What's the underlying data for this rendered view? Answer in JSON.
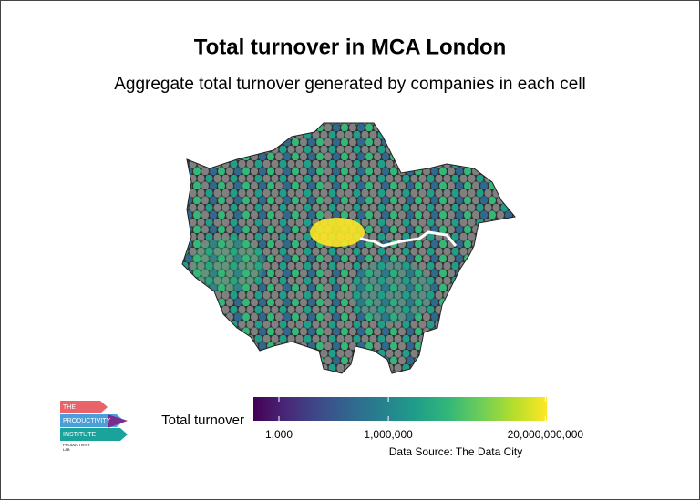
{
  "chart_data": {
    "type": "map",
    "title": "Total turnover in MCA London",
    "subtitle": "Aggregate total turnover generated by companies in each cell",
    "colorbar": {
      "title": "Total turnover",
      "log": true,
      "lim": [
        200,
        22000000000
      ],
      "ticks": [
        {
          "value": 1000,
          "label": "1,000"
        },
        {
          "value": 1000000,
          "label": "1,000,000"
        },
        {
          "value": 20000000000,
          "label": "20,000,000,000"
        }
      ],
      "colors": [
        "#440154",
        "#482878",
        "#3e4a89",
        "#31688e",
        "#26828e",
        "#1f9e89",
        "#35b779",
        "#6ece58",
        "#b5de2b",
        "#fde725"
      ]
    },
    "source": "Data Source: The Data City"
  },
  "logo": {
    "line1": "THE",
    "line2": "PRODUCTIVITY",
    "line3": "INSTITUTE",
    "line4": "PRODUCTIVITY",
    "line5": "LAB"
  }
}
